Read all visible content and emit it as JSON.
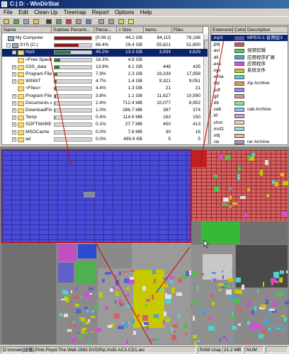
{
  "window": {
    "title": "C:| D: - WinDirStat"
  },
  "menu": [
    "File",
    "Edit",
    "Clean Up",
    "Treemap",
    "Report",
    "Options",
    "Help"
  ],
  "toolbar_icons": [
    "open-icon",
    "refresh-icon",
    "copy-icon",
    "explorer-icon",
    "command-prompt-icon",
    "recycle-icon",
    "delete-icon",
    "properties-icon",
    "user-command-icon",
    "zoom-in-icon",
    "zoom-out-icon",
    "select-parent-icon",
    "help-icon"
  ],
  "tree": {
    "columns": [
      "Name",
      "Subtree Percent...",
      "Perce...",
      "> Size",
      "Items",
      "Files"
    ],
    "rows": [
      {
        "name": "My Computer",
        "pct": "[0:08 s]",
        "size": "44.2 GB",
        "items": "84,115",
        "files": "78,186",
        "bar": 1.0,
        "color": "#8a1a1a"
      },
      {
        "name": "SYS (C:)",
        "pct": "66.4%",
        "size": "29.4 GB",
        "items": "55,821",
        "files": "51,600",
        "bar": 0.66,
        "color": "#8a1a1a"
      },
      {
        "name": "mp3",
        "pct": "45.2%",
        "size": "13.3 GB",
        "items": "3,934",
        "files": "3,629",
        "bar": 0.45,
        "color": "#2e7d32"
      },
      {
        "name": "<Free Space>",
        "pct": "16.3%",
        "size": "4.8 GB",
        "items": "",
        "files": "",
        "bar": 0.16,
        "color": "#2e7d32"
      },
      {
        "name": "G3S_data",
        "pct": "13.9%",
        "size": "4.1 GB",
        "items": "448",
        "files": "435",
        "bar": 0.14,
        "color": "#2e7d32"
      },
      {
        "name": "Program Files.bak",
        "pct": "7.9%",
        "size": "2.3 GB",
        "items": "19,339",
        "files": "17,958",
        "bar": 0.08,
        "color": "#2e7d32"
      },
      {
        "name": "WINNT",
        "pct": "4.7%",
        "size": "1.4 GB",
        "items": "9,321",
        "files": "9,051",
        "bar": 0.05,
        "color": "#2e7d32"
      },
      {
        "name": "<Files>",
        "pct": "4.4%",
        "size": "1.3 GB",
        "items": "21",
        "files": "21",
        "bar": 0.04,
        "color": "#2e7d32"
      },
      {
        "name": "Program Files",
        "pct": "3.8%",
        "size": "1.1 GB",
        "items": "11,627",
        "files": "10,590",
        "bar": 0.04,
        "color": "#2e7d32"
      },
      {
        "name": "Documents and Setti...",
        "pct": "2.4%",
        "size": "712.4 MB",
        "items": "10,077",
        "files": "8,952",
        "bar": 0.02,
        "color": "#2e7d32"
      },
      {
        "name": "DownloadFiles",
        "pct": "1.0%",
        "size": "286.7 MB",
        "items": "387",
        "files": "374",
        "bar": 0.01,
        "color": "#2e7d32"
      },
      {
        "name": "Temp",
        "pct": "0.4%",
        "size": "114.9 MB",
        "items": "162",
        "files": "150",
        "bar": 0.004,
        "color": "#2e7d32"
      },
      {
        "name": "SOFTWARE",
        "pct": "0.1%",
        "size": "27.7 MB",
        "items": "450",
        "files": "413",
        "bar": 0.001,
        "color": "#2e7d32"
      },
      {
        "name": "MSOCache",
        "pct": "0.0%",
        "size": "7.8 MB",
        "items": "30",
        "files": "16",
        "bar": 0.0,
        "color": "#2e7d32"
      },
      {
        "name": "ad",
        "pct": "0.0%",
        "size": "495.9 KB",
        "items": "5",
        "files": "5",
        "bar": 0.0,
        "color": "#2e7d32"
      }
    ]
  },
  "extensions": {
    "columns": [
      "Extension",
      "Color",
      "Description"
    ],
    "rows": [
      {
        "ext": ".mp3",
        "color": "#5050e0",
        "desc": "MPEG-1 音频层3"
      },
      {
        "ext": ".jpg",
        "color": "#e05050",
        "desc": ""
      },
      {
        "ext": ".avi",
        "color": "#50d050",
        "desc": "视频剪辑"
      },
      {
        "ext": ".dll",
        "color": "#50a0d0",
        "desc": "应用程序扩展"
      },
      {
        "ext": ".exe",
        "color": "#d050d0",
        "desc": "应用程序"
      },
      {
        "ext": ".sys",
        "color": "#c8c800",
        "desc": "系统文件"
      },
      {
        "ext": ".wma",
        "color": "#50d0d0",
        "desc": ""
      },
      {
        "ext": ".zip",
        "color": "#d0a050",
        "desc": "zip Archive"
      },
      {
        "ext": ".pdf",
        "color": "#9090e0",
        "desc": ""
      },
      {
        "ext": ".gif",
        "color": "#e09090",
        "desc": ""
      },
      {
        "ext": ".db",
        "color": "#90e090",
        "desc": ""
      },
      {
        "ext": ".cab",
        "color": "#90c0e0",
        "desc": "cab Archive"
      },
      {
        "ext": ".ttf",
        "color": "#e090e0",
        "desc": ""
      },
      {
        "ext": ".chm",
        "color": "#e0e090",
        "desc": ""
      },
      {
        "ext": ".msf2",
        "color": "#90e0e0",
        "desc": ""
      },
      {
        "ext": ".obj",
        "color": "#e0c090",
        "desc": ""
      },
      {
        "ext": ".rar",
        "color": "#a0a0a0",
        "desc": "rar Archive"
      }
    ]
  },
  "status": {
    "path": "D:\\movie\\[迷播].Pink.Floyd.The.Wall.1982.DVDRip.XviD.AC3.CD1.avi",
    "ram_label": "RAM Usage:",
    "ram_value": "21.2 MB",
    "num": "NUM"
  }
}
